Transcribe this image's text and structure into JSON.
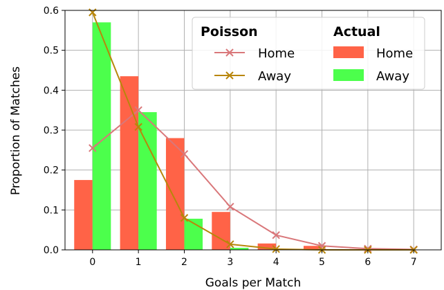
{
  "chart_data": {
    "type": "bar",
    "title": "",
    "xlabel": "Goals per Match",
    "ylabel": "Proportion of Matches",
    "x": [
      0,
      1,
      2,
      3,
      4,
      5,
      6,
      7
    ],
    "x_ticks": [
      "0",
      "1",
      "2",
      "3",
      "4",
      "5",
      "6",
      "7"
    ],
    "y_ticks": [
      "0.0",
      "0.1",
      "0.2",
      "0.3",
      "0.4",
      "0.5",
      "0.6"
    ],
    "xlim": [
      -0.6,
      7.6
    ],
    "ylim": [
      0,
      0.6
    ],
    "grid": true,
    "legend_placement": "top-right",
    "legend": {
      "poisson_heading": "Poisson",
      "actual_heading": "Actual"
    },
    "bar_series": [
      {
        "name": "Home",
        "group": "Actual",
        "color": "#ff6347",
        "values": [
          0.175,
          0.435,
          0.28,
          0.095,
          0.016,
          0.01,
          0.002,
          0.0
        ]
      },
      {
        "name": "Away",
        "group": "Actual",
        "color": "#4cff4c",
        "values": [
          0.57,
          0.345,
          0.078,
          0.005,
          0.002,
          0.0,
          0.0,
          0.0
        ]
      }
    ],
    "line_series": [
      {
        "name": "Home",
        "group": "Poisson",
        "color": "#d9777a",
        "marker": "x",
        "values": [
          0.255,
          0.35,
          0.24,
          0.108,
          0.037,
          0.01,
          0.003,
          0.001
        ]
      },
      {
        "name": "Away",
        "group": "Poisson",
        "color": "#b8860b",
        "marker": "x",
        "values": [
          0.595,
          0.308,
          0.08,
          0.014,
          0.002,
          0.0,
          0.0,
          0.0
        ]
      }
    ]
  }
}
